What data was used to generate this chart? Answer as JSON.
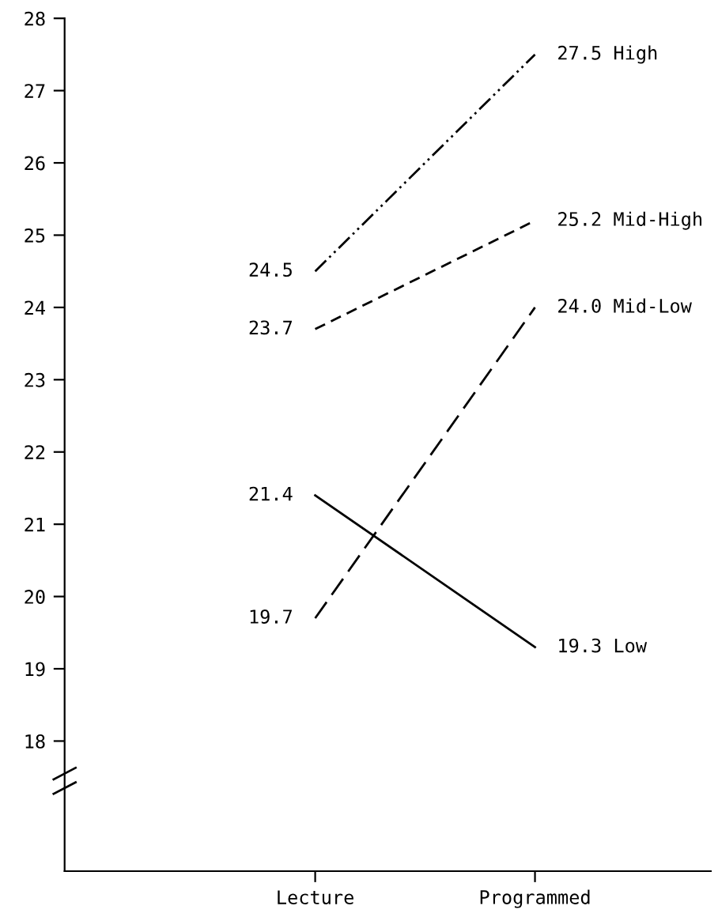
{
  "chart_data": {
    "type": "line",
    "categories": [
      "Lecture",
      "Programmed"
    ],
    "series": [
      {
        "name": "High",
        "color": "#000000",
        "values": [
          24.5,
          27.5
        ],
        "value_labels": [
          "24.5",
          "27.5"
        ],
        "line_style": "dashdot"
      },
      {
        "name": "Mid-High",
        "color": "#000000",
        "values": [
          23.7,
          25.2
        ],
        "value_labels": [
          "23.7",
          "25.2"
        ],
        "line_style": "dashed"
      },
      {
        "name": "Mid-Low",
        "color": "#000000",
        "values": [
          19.7,
          24.0
        ],
        "value_labels": [
          "19.7",
          "24.0"
        ],
        "line_style": "longdashed"
      },
      {
        "name": "Low",
        "color": "#000000",
        "values": [
          21.4,
          19.3
        ],
        "value_labels": [
          "21.4",
          "19.3"
        ],
        "line_style": "solid"
      }
    ],
    "ylim": [
      16.2,
      28
    ],
    "yticks": [
      18,
      19,
      20,
      21,
      22,
      23,
      24,
      25,
      26,
      27,
      28
    ],
    "grid": false,
    "legend": false,
    "marker": "none"
  }
}
